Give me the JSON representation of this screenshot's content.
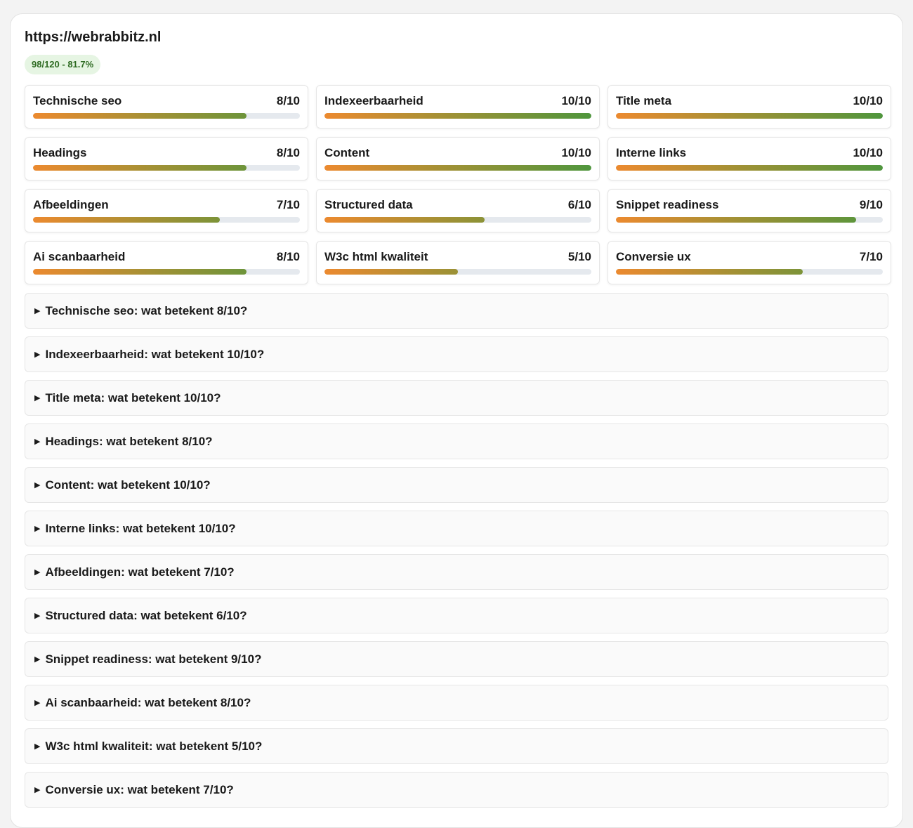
{
  "site": {
    "url": "https://webrabbitz.nl",
    "total_badge": "98/120 - 81.7%"
  },
  "colors": {
    "badge_background": "#e6f5e3",
    "badge_text": "#2e6b22",
    "bar_start": "#ec8a2f",
    "bar_end": "#4f963d",
    "bar_track": "#e5e9ee"
  },
  "scores": [
    {
      "label": "Technische seo",
      "score": "8/10",
      "value": 8,
      "max": 10
    },
    {
      "label": "Indexeerbaarheid",
      "score": "10/10",
      "value": 10,
      "max": 10
    },
    {
      "label": "Title meta",
      "score": "10/10",
      "value": 10,
      "max": 10
    },
    {
      "label": "Headings",
      "score": "8/10",
      "value": 8,
      "max": 10
    },
    {
      "label": "Content",
      "score": "10/10",
      "value": 10,
      "max": 10
    },
    {
      "label": "Interne links",
      "score": "10/10",
      "value": 10,
      "max": 10
    },
    {
      "label": "Afbeeldingen",
      "score": "7/10",
      "value": 7,
      "max": 10
    },
    {
      "label": "Structured data",
      "score": "6/10",
      "value": 6,
      "max": 10
    },
    {
      "label": "Snippet readiness",
      "score": "9/10",
      "value": 9,
      "max": 10
    },
    {
      "label": "Ai scanbaarheid",
      "score": "8/10",
      "value": 8,
      "max": 10
    },
    {
      "label": "W3c html kwaliteit",
      "score": "5/10",
      "value": 5,
      "max": 10
    },
    {
      "label": "Conversie ux",
      "score": "7/10",
      "value": 7,
      "max": 10
    }
  ],
  "faq": [
    {
      "label": "Technische seo: wat betekent 8/10?",
      "icon": "triangle-right-icon"
    },
    {
      "label": "Indexeerbaarheid: wat betekent 10/10?",
      "icon": "triangle-right-icon"
    },
    {
      "label": "Title meta: wat betekent 10/10?",
      "icon": "triangle-right-icon"
    },
    {
      "label": "Headings: wat betekent 8/10?",
      "icon": "triangle-right-icon"
    },
    {
      "label": "Content: wat betekent 10/10?",
      "icon": "triangle-right-icon"
    },
    {
      "label": "Interne links: wat betekent 10/10?",
      "icon": "triangle-right-icon"
    },
    {
      "label": "Afbeeldingen: wat betekent 7/10?",
      "icon": "triangle-right-icon"
    },
    {
      "label": "Structured data: wat betekent 6/10?",
      "icon": "triangle-right-icon"
    },
    {
      "label": "Snippet readiness: wat betekent 9/10?",
      "icon": "triangle-right-icon"
    },
    {
      "label": "Ai scanbaarheid: wat betekent 8/10?",
      "icon": "triangle-right-icon"
    },
    {
      "label": "W3c html kwaliteit: wat betekent 5/10?",
      "icon": "triangle-right-icon"
    },
    {
      "label": "Conversie ux: wat betekent 7/10?",
      "icon": "triangle-right-icon"
    }
  ]
}
